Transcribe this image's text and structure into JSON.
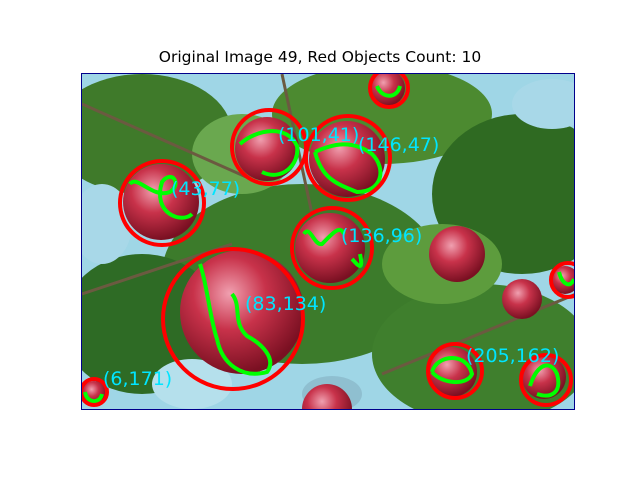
{
  "figure": {
    "title": "Original Image 49, Red Objects Count: 10",
    "frame_color": "#00008b",
    "circle_color": "#ff0000",
    "contour_color": "#00ff00",
    "label_color": "#00e5ff"
  },
  "detections": [
    {
      "label": "(101,41)"
    },
    {
      "label": "(146,47)"
    },
    {
      "label": "(43,77)"
    },
    {
      "label": "(136,96)"
    },
    {
      "label": "(83,134)"
    },
    {
      "label": "(205,162)"
    },
    {
      "label": "(6,171)"
    }
  ]
}
